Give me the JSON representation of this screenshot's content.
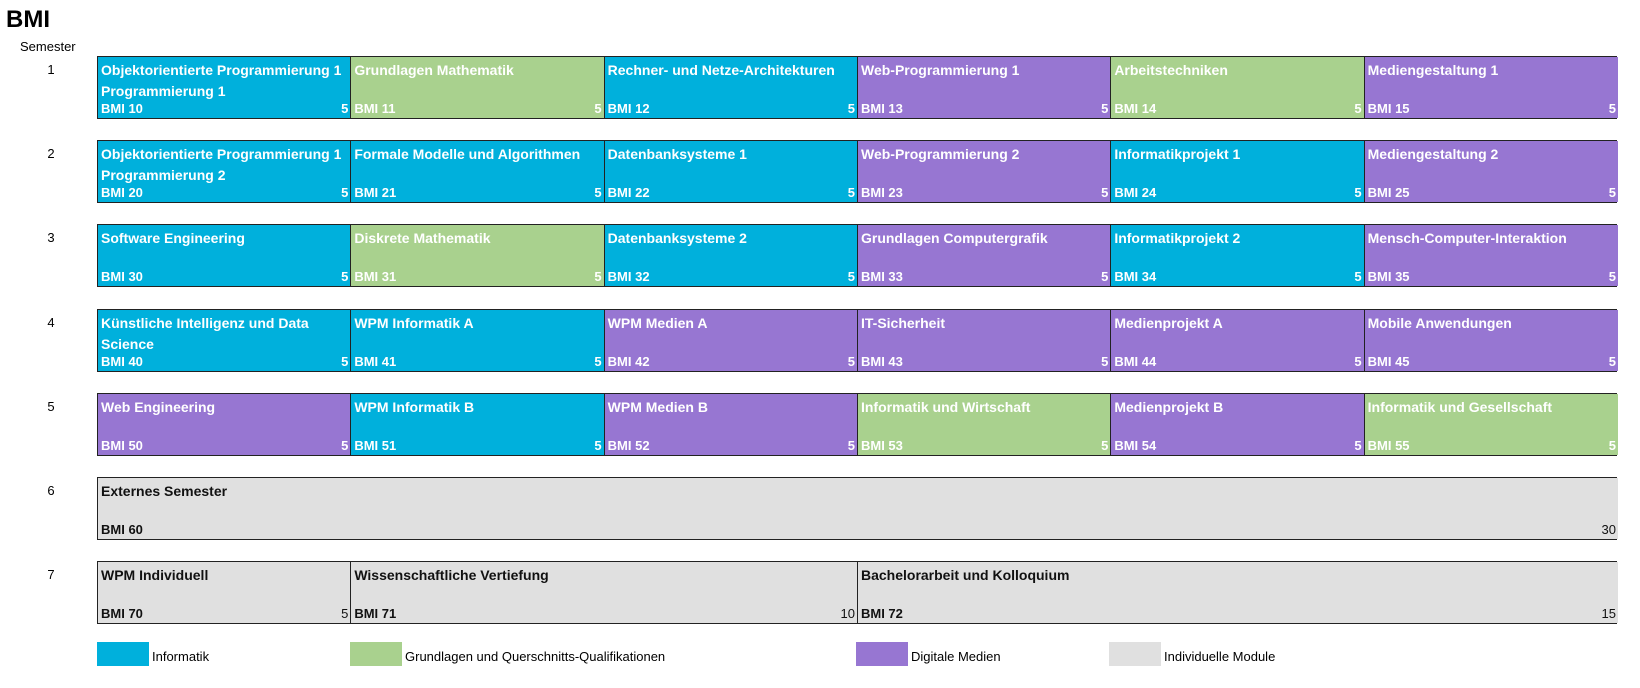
{
  "title": "BMI",
  "semester_label": "Semester",
  "colors": {
    "informatik": "#00b0dc",
    "grundlagen": "#a9d18e",
    "medien": "#9776d2",
    "individuell": "#e0e0e0"
  },
  "rows": [
    {
      "number": "1",
      "cells": [
        {
          "title": "Objektorientierte Programmierung 1 Programmierung 1",
          "code": "BMI 10",
          "credits": "5",
          "category": "informatik"
        },
        {
          "title": "Grundlagen Mathematik",
          "code": "BMI 11",
          "credits": "5",
          "category": "grundlagen"
        },
        {
          "title": "Rechner- und Netze-Architekturen",
          "code": "BMI 12",
          "credits": "5",
          "category": "informatik"
        },
        {
          "title": "Web-Programmierung 1",
          "code": "BMI 13",
          "credits": "5",
          "category": "medien"
        },
        {
          "title": "Arbeitstechniken",
          "code": "BMI 14",
          "credits": "5",
          "category": "grundlagen"
        },
        {
          "title": "Mediengestaltung 1",
          "code": "BMI 15",
          "credits": "5",
          "category": "medien"
        }
      ]
    },
    {
      "number": "2",
      "cells": [
        {
          "title": "Objektorientierte Programmierung 1 Programmierung 2",
          "code": "BMI 20",
          "credits": "5",
          "category": "informatik"
        },
        {
          "title": "Formale Modelle und Algorithmen",
          "code": "BMI 21",
          "credits": "5",
          "category": "informatik"
        },
        {
          "title": "Datenbanksysteme 1",
          "code": "BMI 22",
          "credits": "5",
          "category": "informatik"
        },
        {
          "title": "Web-Programmierung 2",
          "code": "BMI 23",
          "credits": "5",
          "category": "medien"
        },
        {
          "title": "Informatikprojekt 1",
          "code": "BMI 24",
          "credits": "5",
          "category": "informatik"
        },
        {
          "title": "Mediengestaltung 2",
          "code": "BMI 25",
          "credits": "5",
          "category": "medien"
        }
      ]
    },
    {
      "number": "3",
      "cells": [
        {
          "title": "Software Engineering",
          "code": "BMI 30",
          "credits": "5",
          "category": "informatik"
        },
        {
          "title": "Diskrete Mathematik",
          "code": "BMI 31",
          "credits": "5",
          "category": "grundlagen"
        },
        {
          "title": "Datenbanksysteme 2",
          "code": "BMI 32",
          "credits": "5",
          "category": "informatik"
        },
        {
          "title": "Grundlagen Computergrafik",
          "code": "BMI 33",
          "credits": "5",
          "category": "medien"
        },
        {
          "title": "Informatikprojekt 2",
          "code": "BMI 34",
          "credits": "5",
          "category": "informatik"
        },
        {
          "title": "Mensch-Computer-Interaktion",
          "code": "BMI 35",
          "credits": "5",
          "category": "medien"
        }
      ]
    },
    {
      "number": "4",
      "cells": [
        {
          "title": "Künstliche Intelligenz und Data Science",
          "code": "BMI 40",
          "credits": "5",
          "category": "informatik"
        },
        {
          "title": "WPM Informatik A",
          "code": "BMI 41",
          "credits": "5",
          "category": "informatik"
        },
        {
          "title": "WPM Medien A",
          "code": "BMI 42",
          "credits": "5",
          "category": "medien"
        },
        {
          "title": "IT-Sicherheit",
          "code": "BMI 43",
          "credits": "5",
          "category": "medien"
        },
        {
          "title": "Medienprojekt A",
          "code": "BMI 44",
          "credits": "5",
          "category": "medien"
        },
        {
          "title": "Mobile Anwendungen",
          "code": "BMI 45",
          "credits": "5",
          "category": "medien"
        }
      ]
    },
    {
      "number": "5",
      "cells": [
        {
          "title": "Web Engineering",
          "code": "BMI 50",
          "credits": "5",
          "category": "medien"
        },
        {
          "title": "WPM Informatik B",
          "code": "BMI 51",
          "credits": "5",
          "category": "informatik"
        },
        {
          "title": "WPM Medien B",
          "code": "BMI 52",
          "credits": "5",
          "category": "medien"
        },
        {
          "title": "Informatik und Wirtschaft",
          "code": "BMI 53",
          "credits": "5",
          "category": "grundlagen"
        },
        {
          "title": "Medienprojekt B",
          "code": "BMI 54",
          "credits": "5",
          "category": "medien"
        },
        {
          "title": "Informatik und Gesellschaft",
          "code": "BMI 55",
          "credits": "5",
          "category": "grundlagen"
        }
      ]
    },
    {
      "number": "6",
      "cells": [
        {
          "title": "Externes Semester",
          "code": "BMI 60",
          "credits": "30",
          "category": "individuell"
        }
      ]
    },
    {
      "number": "7",
      "cells": [
        {
          "title": "WPM Individuell",
          "code": "BMI 70",
          "credits": "5",
          "category": "individuell"
        },
        {
          "title": "Wissenschaftliche Vertiefung",
          "code": "BMI 71",
          "credits": "10",
          "category": "individuell"
        },
        {
          "title": "Bachelorarbeit und Kolloquium",
          "code": "BMI 72",
          "credits": "15",
          "category": "individuell"
        }
      ]
    }
  ],
  "legend": [
    {
      "label": "Informatik",
      "category": "informatik"
    },
    {
      "label": "Grundlagen und Querschnitts-Qualifikationen",
      "category": "grundlagen"
    },
    {
      "label": "Digitale Medien",
      "category": "medien"
    },
    {
      "label": "Individuelle Module",
      "category": "individuell"
    }
  ]
}
